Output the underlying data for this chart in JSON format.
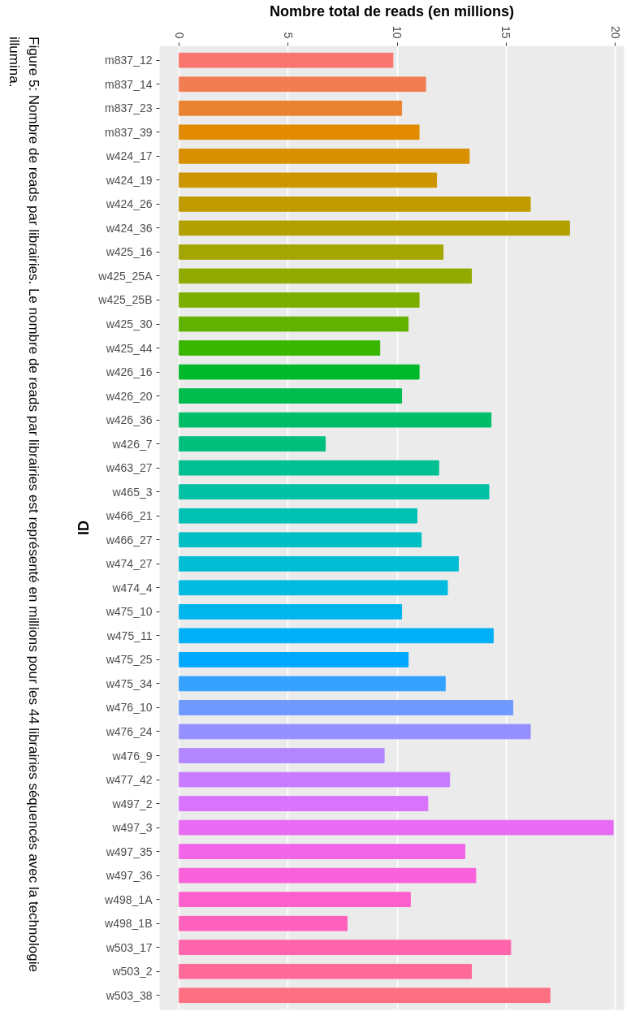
{
  "chart_data": {
    "type": "bar",
    "orientation": "horizontal",
    "xlabel": "Nombre total de reads (en millions)",
    "ylabel": "ID",
    "categories": [
      "m837_12",
      "m837_14",
      "m837_23",
      "m837_39",
      "w424_17",
      "w424_19",
      "w424_26",
      "w424_36",
      "w425_16",
      "w425_25A",
      "w425_25B",
      "w425_30",
      "w425_44",
      "w426_16",
      "w426_20",
      "w426_36",
      "w426_7",
      "w463_27",
      "w465_3",
      "w466_21",
      "w466_27",
      "w474_27",
      "w474_4",
      "w475_10",
      "w475_11",
      "w475_25",
      "w475_34",
      "w476_10",
      "w476_24",
      "w476_9",
      "w477_42",
      "w497_2",
      "w497_3",
      "w497_35",
      "w497_36",
      "w498_1A",
      "w498_1B",
      "w503_17",
      "w503_2",
      "w503_38"
    ],
    "values": [
      9.8,
      11.3,
      10.2,
      11.0,
      13.3,
      11.8,
      16.1,
      17.9,
      12.1,
      13.4,
      11.0,
      10.5,
      9.2,
      11.0,
      10.2,
      14.3,
      6.7,
      11.9,
      14.2,
      10.9,
      11.1,
      12.8,
      12.3,
      10.2,
      14.4,
      10.5,
      12.2,
      15.3,
      16.1,
      9.4,
      12.4,
      11.4,
      19.9,
      13.1,
      13.6,
      10.6,
      7.7,
      15.2,
      13.4,
      17.0
    ],
    "colors": [
      "#f8766d",
      "#f27d53",
      "#ea8331",
      "#e28a00",
      "#d89000",
      "#cd9600",
      "#c09b00",
      "#b2a000",
      "#a3a500",
      "#91aa00",
      "#7cae00",
      "#61b200",
      "#39b600",
      "#00b92a",
      "#00bb4e",
      "#00be67",
      "#00bf7d",
      "#00c091",
      "#00c1a3",
      "#00c0b4",
      "#00bfc4",
      "#00bdd3",
      "#00bae0",
      "#00b5ec",
      "#00b0f6",
      "#00a9ff",
      "#35a2ff",
      "#7099ff",
      "#9590ff",
      "#b186ff",
      "#c77cff",
      "#d973fc",
      "#e76bf3",
      "#f265e8",
      "#fa62db",
      "#ff61cc",
      "#ff62bc",
      "#ff65aa",
      "#ff6a98",
      "#fd7083"
    ],
    "xlim": [
      -0.9,
      20.4
    ],
    "xticks": [
      0,
      5,
      10,
      15,
      20
    ],
    "grid": "x",
    "annotations": [
      "Figure 5: Nombre de reads par librairies. Le nombre de reads par librairies est représenté en millions pour les 44 librairies séquencés avec la technologie illumina."
    ]
  }
}
